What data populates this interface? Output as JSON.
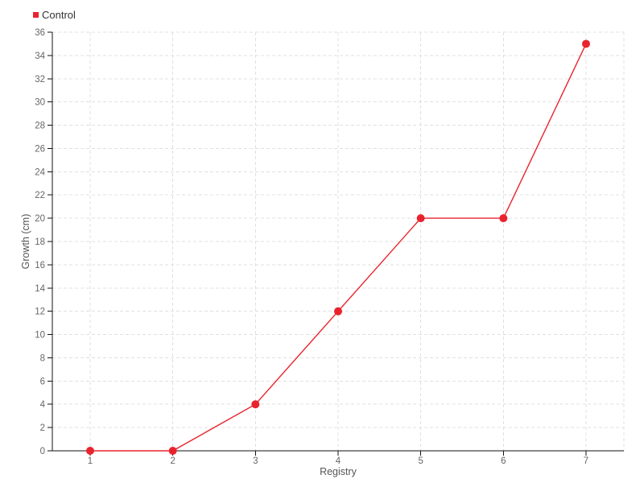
{
  "chart_data": {
    "type": "line",
    "title": "",
    "xlabel": "Registry",
    "ylabel": "Growth (cm)",
    "x": [
      1,
      2,
      3,
      4,
      5,
      6,
      7
    ],
    "series": [
      {
        "name": "Control",
        "color": "#e9232e",
        "values": [
          0,
          0,
          4,
          12,
          20,
          20,
          35
        ]
      }
    ],
    "ylim": [
      0,
      36
    ],
    "ytick_step": 2,
    "grid": true,
    "grid_style": "dashed",
    "legend_position": "top-left",
    "marker": "circle",
    "colors": {
      "background": "#ffffff",
      "grid": "#e0e0e0",
      "axis": "#111111",
      "tick_label": "#666666",
      "axis_title": "#555555",
      "legend_text": "#333333"
    }
  }
}
